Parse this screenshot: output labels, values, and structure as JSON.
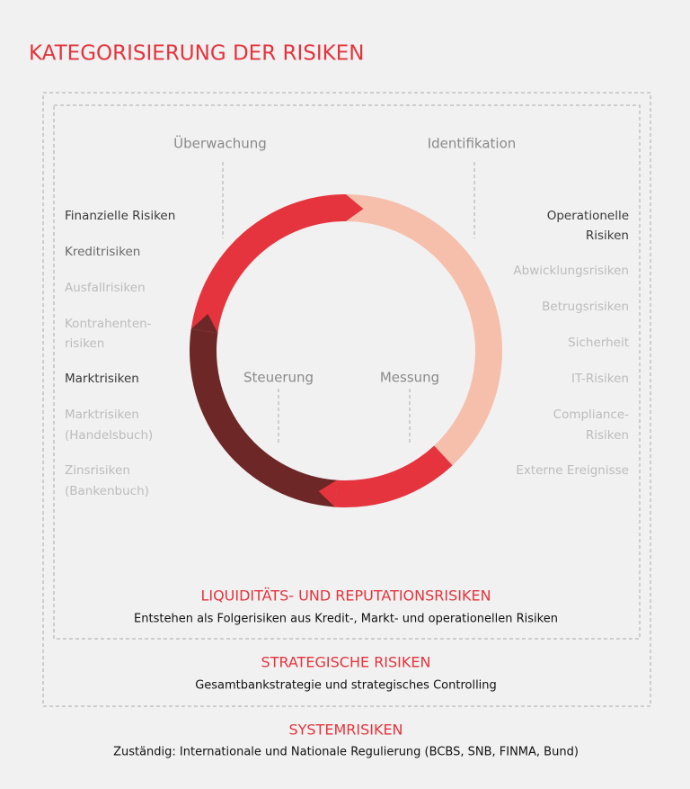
{
  "header": {
    "title": "KATEGORISIERUNG DER RISIKEN"
  },
  "cycle": {
    "stages": [
      "Überwachung",
      "Identifikation",
      "Steuerung",
      "Messung"
    ]
  },
  "left_list": [
    [
      "Finanzielle Risiken"
    ],
    [
      "Kreditrisiken"
    ],
    [
      "Ausfallrisiken"
    ],
    [
      "Kontrahenten-",
      "risiken"
    ],
    [
      "Marktrisiken"
    ],
    [
      "Marktrisiken",
      "(Handelsbuch)"
    ],
    [
      "Zinsrisiken",
      "(Bankenbuch)"
    ]
  ],
  "right_list": [
    [
      "Operationelle",
      "Risiken"
    ],
    [
      "Abwicklungsrisiken"
    ],
    [
      "Betrugsrisiken"
    ],
    [
      "Sicherheit"
    ],
    [
      "IT-Risiken"
    ],
    [
      "Compliance-",
      "Risiken"
    ],
    [
      "Externe Ereignisse"
    ]
  ],
  "layers": [
    {
      "title": "LIQUIDITÄTS- UND REPUTATIONSRISIKEN",
      "text": "Entstehen als Folgerisiken aus Kredit-, Markt- und operationellen Risiken"
    },
    {
      "title": "STRATEGISCHE RISIKEN",
      "text": "Gesamtbankstrategie und strategisches Controlling"
    },
    {
      "title": "SYSTEMRISIKEN",
      "text": "Zuständig: Internationale und Nationale Regulierung (BCBS, SNB, FINMA, Bund)"
    }
  ]
}
